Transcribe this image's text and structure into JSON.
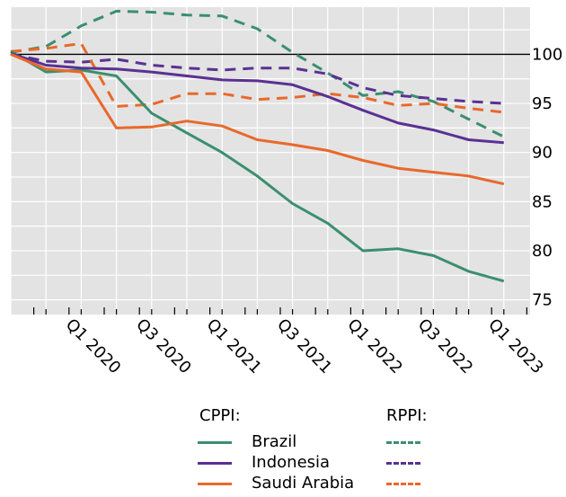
{
  "chart_data": {
    "type": "line",
    "x_ticks": [
      "Q1 2020",
      "Q3 2020",
      "Q1 2021",
      "Q3 2021",
      "Q1 2022",
      "Q3 2022",
      "Q1 2023"
    ],
    "y_ticks": [
      75,
      80,
      85,
      90,
      95,
      100
    ],
    "ylim": [
      73.5,
      104.8
    ],
    "reference_line": 100,
    "grid": true,
    "series": [
      {
        "name": "Brazil",
        "group": "CPPI",
        "style": "solid",
        "color": "#3a8f6e",
        "values": [
          100.3,
          98.2,
          98.4,
          97.8,
          94.0,
          92.0,
          90.0,
          87.6,
          84.8,
          82.8,
          80.0,
          80.2,
          79.5,
          77.9,
          76.9
        ]
      },
      {
        "name": "Indonesia",
        "group": "CPPI",
        "style": "solid",
        "color": "#5a3192",
        "values": [
          100.1,
          98.9,
          98.6,
          98.5,
          98.2,
          97.8,
          97.4,
          97.3,
          96.9,
          95.7,
          94.3,
          93.0,
          92.3,
          91.3,
          91.0
        ]
      },
      {
        "name": "Saudi Arabia",
        "group": "CPPI",
        "style": "solid",
        "color": "#e8692b",
        "values": [
          100.0,
          98.5,
          98.2,
          92.5,
          92.6,
          93.2,
          92.7,
          91.3,
          90.8,
          90.2,
          89.2,
          88.4,
          88.0,
          87.6,
          86.8
        ]
      },
      {
        "name": "Brazil",
        "group": "RPPI",
        "style": "dashed",
        "color": "#3a8f6e",
        "values": [
          100.2,
          100.8,
          102.9,
          104.4,
          104.3,
          104.0,
          103.9,
          102.6,
          100.2,
          98.1,
          95.8,
          96.2,
          95.2,
          93.4,
          91.6
        ]
      },
      {
        "name": "Indonesia",
        "group": "RPPI",
        "style": "dashed",
        "color": "#5a3192",
        "values": [
          100.0,
          99.3,
          99.2,
          99.5,
          98.9,
          98.6,
          98.4,
          98.6,
          98.6,
          98.0,
          96.6,
          95.8,
          95.5,
          95.2,
          95.0
        ]
      },
      {
        "name": "Saudi Arabia",
        "group": "RPPI",
        "style": "dashed",
        "color": "#e8692b",
        "values": [
          100.3,
          100.6,
          101.1,
          94.7,
          94.9,
          96.0,
          96.0,
          95.4,
          95.6,
          96.0,
          95.6,
          94.8,
          95.0,
          94.5,
          94.1
        ]
      }
    ]
  },
  "legend": {
    "cppi_header": "CPPI:",
    "rppi_header": "RPPI:",
    "rows": [
      {
        "name": "Brazil",
        "color": "#3a8f6e"
      },
      {
        "name": "Indonesia",
        "color": "#5a3192"
      },
      {
        "name": "Saudi Arabia",
        "color": "#e8692b"
      }
    ]
  }
}
